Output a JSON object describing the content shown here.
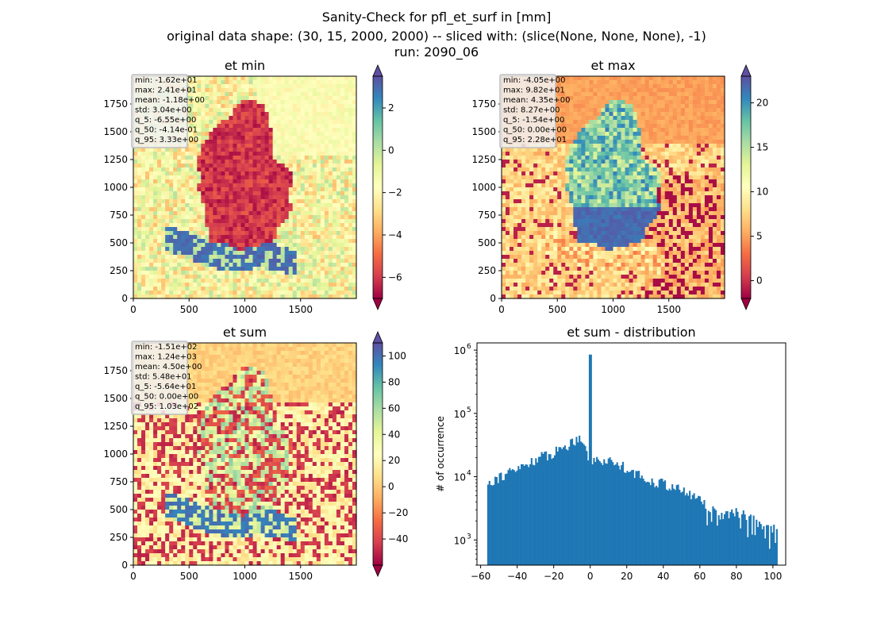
{
  "suptitle": {
    "line1": "Sanity-Check for pfl_et_surf in [mm]",
    "line2": "original data shape: (30, 15, 2000, 2000) -- sliced with: (slice(None, None, None), -1)",
    "line3": "run: 2090_06"
  },
  "colors": {
    "cmap": [
      "#9e0142",
      "#d53e4f",
      "#f46d43",
      "#fdae61",
      "#fee08b",
      "#ffffbf",
      "#e6f598",
      "#abdda4",
      "#66c2a5",
      "#3288bd",
      "#5e4fa2"
    ],
    "hist_bar": "#1f77b4",
    "germany_min": "#b52a3d",
    "germany_max": "#4fa7b0",
    "stats_box": "#f2f2f2"
  },
  "chart_data": [
    {
      "type": "heatmap",
      "id": "et_min",
      "title": "et min",
      "xlabel": "",
      "ylabel": "",
      "xlim": [
        0,
        2000
      ],
      "ylim": [
        0,
        2000
      ],
      "xticks": [
        "0",
        "500",
        "1000",
        "1500"
      ],
      "yticks": [
        "0",
        "250",
        "500",
        "750",
        "1000",
        "1250",
        "1500",
        "1750"
      ],
      "colorbar": {
        "vmin": -7,
        "vmax": 3.5,
        "extend": "both",
        "ticks": [
          "−6",
          "−4",
          "−2",
          "0",
          "2"
        ],
        "tick_values": [
          -6,
          -4,
          -2,
          0,
          2
        ]
      },
      "stats": [
        "min: -1.62e+01",
        "max: 2.41e+01",
        "mean: -1.18e+00",
        "std: 3.04e+00",
        "q_5: -6.55e+00",
        "q_50: -4.14e-01",
        "q_95: 3.33e+00"
      ]
    },
    {
      "type": "heatmap",
      "id": "et_max",
      "title": "et max",
      "xlabel": "",
      "ylabel": "",
      "xlim": [
        0,
        2000
      ],
      "ylim": [
        0,
        2000
      ],
      "xticks": [
        "0",
        "500",
        "1000",
        "1500"
      ],
      "yticks": [
        "0",
        "250",
        "500",
        "750",
        "1000",
        "1250",
        "1500",
        "1750"
      ],
      "colorbar": {
        "vmin": -2,
        "vmax": 23,
        "extend": "both",
        "ticks": [
          "0",
          "5",
          "10",
          "15",
          "20"
        ],
        "tick_values": [
          0,
          5,
          10,
          15,
          20
        ]
      },
      "stats": [
        "min: -4.05e+00",
        "max: 9.82e+01",
        "mean: 4.35e+00",
        "std: 8.27e+00",
        "q_5: -1.54e+00",
        "q_50: 0.00e+00",
        "q_95: 2.28e+01"
      ]
    },
    {
      "type": "heatmap",
      "id": "et_sum",
      "title": "et sum",
      "xlabel": "",
      "ylabel": "",
      "xlim": [
        0,
        2000
      ],
      "ylim": [
        0,
        2000
      ],
      "xticks": [
        "0",
        "500",
        "1000",
        "1500"
      ],
      "yticks": [
        "0",
        "250",
        "500",
        "750",
        "1000",
        "1250",
        "1500",
        "1750"
      ],
      "colorbar": {
        "vmin": -60,
        "vmax": 110,
        "extend": "both",
        "ticks": [
          "−40",
          "−20",
          "0",
          "20",
          "40",
          "60",
          "80",
          "100"
        ],
        "tick_values": [
          -40,
          -20,
          0,
          20,
          40,
          60,
          80,
          100
        ]
      },
      "stats": [
        "min: -1.51e+02",
        "max: 1.24e+03",
        "mean: 4.50e+00",
        "std: 5.48e+01",
        "q_5: -5.64e+01",
        "q_50: 0.00e+00",
        "q_95: 1.03e+02"
      ]
    },
    {
      "type": "bar",
      "id": "et_sum_distribution",
      "title": "et sum - distribution",
      "xlabel": "",
      "ylabel": "# of occurrence",
      "log_y": true,
      "xlim": [
        -62,
        107
      ],
      "ylim": [
        400,
        1300000
      ],
      "xticks": [
        "−60",
        "−40",
        "−20",
        "0",
        "20",
        "40",
        "60",
        "80",
        "100"
      ],
      "xtick_values": [
        -60,
        -40,
        -20,
        0,
        20,
        40,
        60,
        80,
        100
      ],
      "yticks": [
        "10",
        "10",
        "10",
        "10"
      ],
      "ytick_exponents": [
        "3",
        "4",
        "5",
        "6"
      ],
      "ytick_values": [
        1000,
        10000,
        100000,
        1000000
      ],
      "x": [
        -56.4,
        0,
        102.5
      ],
      "profile": [
        [
          -57,
          8000
        ],
        [
          -50,
          10000
        ],
        [
          -40,
          13000
        ],
        [
          -30,
          19000
        ],
        [
          -20,
          24000
        ],
        [
          -10,
          35000
        ],
        [
          -5,
          45000
        ],
        [
          -1,
          20000
        ],
        [
          0,
          850000
        ],
        [
          1,
          18000
        ],
        [
          10,
          18000
        ],
        [
          20,
          14000
        ],
        [
          30,
          9000
        ],
        [
          40,
          8000
        ],
        [
          50,
          6000
        ],
        [
          60,
          4500
        ],
        [
          70,
          2500
        ],
        [
          80,
          2800
        ],
        [
          90,
          2000
        ],
        [
          100,
          1500
        ],
        [
          102.5,
          1300
        ]
      ]
    }
  ]
}
